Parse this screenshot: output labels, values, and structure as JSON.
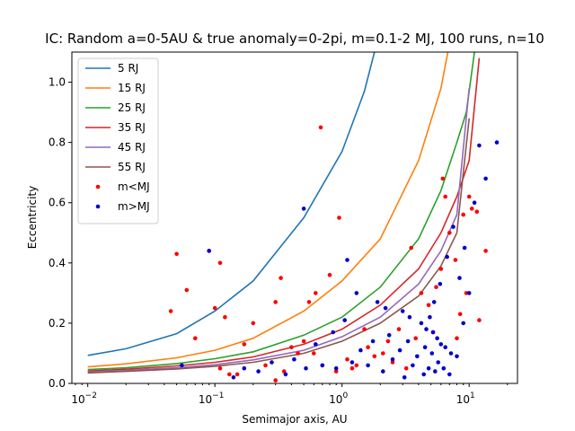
{
  "chart_data": {
    "type": "scatter",
    "title": "IC: Random a=0-5AU & true anomaly=0-2pi, m=0.1-2 MJ, 100 runs, n=10",
    "xlabel": "Semimajor axis, AU",
    "ylabel": "Eccentricity",
    "xscale": "log",
    "xlim": [
      0.0075,
      24
    ],
    "ylim": [
      0.0,
      1.1
    ],
    "xticks": [
      {
        "value": 0.01,
        "base": "10",
        "exp": "−2"
      },
      {
        "value": 0.1,
        "base": "10",
        "exp": "−1"
      },
      {
        "value": 1,
        "base": "10",
        "exp": "0"
      },
      {
        "value": 10,
        "base": "10",
        "exp": "1"
      }
    ],
    "yticks": [
      "0.0",
      "0.2",
      "0.4",
      "0.6",
      "0.8",
      "1.0"
    ],
    "legend_position": "upper left",
    "curves": [
      {
        "name": "5 RJ",
        "color": "#1f77b4",
        "points": [
          [
            0.01,
            0.093
          ],
          [
            0.02,
            0.115
          ],
          [
            0.05,
            0.165
          ],
          [
            0.1,
            0.24
          ],
          [
            0.2,
            0.34
          ],
          [
            0.5,
            0.55
          ],
          [
            1,
            0.77
          ],
          [
            1.5,
            0.97
          ],
          [
            1.8,
            1.1
          ]
        ]
      },
      {
        "name": "15 RJ",
        "color": "#ff7f0e",
        "points": [
          [
            0.01,
            0.055
          ],
          [
            0.02,
            0.065
          ],
          [
            0.05,
            0.085
          ],
          [
            0.1,
            0.11
          ],
          [
            0.2,
            0.15
          ],
          [
            0.5,
            0.24
          ],
          [
            1,
            0.34
          ],
          [
            2,
            0.48
          ],
          [
            4,
            0.74
          ],
          [
            6,
            0.98
          ],
          [
            6.8,
            1.1
          ]
        ]
      },
      {
        "name": "25 RJ",
        "color": "#2ca02c",
        "points": [
          [
            0.01,
            0.046
          ],
          [
            0.02,
            0.052
          ],
          [
            0.05,
            0.066
          ],
          [
            0.1,
            0.082
          ],
          [
            0.2,
            0.105
          ],
          [
            0.5,
            0.16
          ],
          [
            1,
            0.22
          ],
          [
            2,
            0.32
          ],
          [
            4,
            0.48
          ],
          [
            6,
            0.64
          ],
          [
            8,
            0.8
          ],
          [
            9.5,
            0.9
          ],
          [
            11,
            1.1
          ]
        ]
      },
      {
        "name": "35 RJ",
        "color": "#d62728",
        "points": [
          [
            0.01,
            0.041
          ],
          [
            0.02,
            0.047
          ],
          [
            0.05,
            0.058
          ],
          [
            0.1,
            0.07
          ],
          [
            0.2,
            0.088
          ],
          [
            0.5,
            0.13
          ],
          [
            1,
            0.18
          ],
          [
            2,
            0.26
          ],
          [
            4,
            0.38
          ],
          [
            6,
            0.5
          ],
          [
            8,
            0.62
          ],
          [
            10,
            0.74
          ],
          [
            12,
            1.08
          ]
        ]
      },
      {
        "name": "45 RJ",
        "color": "#9467bd",
        "points": [
          [
            0.01,
            0.038
          ],
          [
            0.02,
            0.043
          ],
          [
            0.05,
            0.052
          ],
          [
            0.1,
            0.062
          ],
          [
            0.2,
            0.078
          ],
          [
            0.5,
            0.11
          ],
          [
            1,
            0.155
          ],
          [
            2,
            0.22
          ],
          [
            4,
            0.33
          ],
          [
            6,
            0.44
          ],
          [
            8,
            0.56
          ],
          [
            10,
            0.98
          ]
        ]
      },
      {
        "name": "55 RJ",
        "color": "#8c564b",
        "points": [
          [
            0.01,
            0.035
          ],
          [
            0.02,
            0.04
          ],
          [
            0.05,
            0.048
          ],
          [
            0.1,
            0.057
          ],
          [
            0.2,
            0.07
          ],
          [
            0.5,
            0.1
          ],
          [
            1,
            0.14
          ],
          [
            2,
            0.2
          ],
          [
            4,
            0.29
          ],
          [
            6,
            0.39
          ],
          [
            8,
            0.5
          ],
          [
            10,
            0.88
          ]
        ]
      }
    ],
    "scatter_series": [
      {
        "name": "m<MJ",
        "color": "#ff0000",
        "points": [
          [
            0.05,
            0.43
          ],
          [
            0.06,
            0.31
          ],
          [
            0.045,
            0.24
          ],
          [
            0.07,
            0.15
          ],
          [
            0.11,
            0.4
          ],
          [
            0.1,
            0.25
          ],
          [
            0.12,
            0.22
          ],
          [
            0.09,
            0.44
          ],
          [
            0.2,
            0.2
          ],
          [
            0.17,
            0.13
          ],
          [
            0.11,
            0.05
          ],
          [
            0.13,
            0.03
          ],
          [
            0.3,
            0.27
          ],
          [
            0.33,
            0.35
          ],
          [
            0.4,
            0.12
          ],
          [
            0.45,
            0.1
          ],
          [
            0.5,
            0.14
          ],
          [
            0.55,
            0.27
          ],
          [
            0.62,
            0.3
          ],
          [
            0.68,
            0.85
          ],
          [
            0.8,
            0.36
          ],
          [
            0.95,
            0.55
          ],
          [
            1.1,
            0.08
          ],
          [
            1.3,
            0.06
          ],
          [
            1.6,
            0.12
          ],
          [
            2.1,
            0.1
          ],
          [
            2.5,
            0.07
          ],
          [
            3.2,
            0.05
          ],
          [
            3.5,
            0.45
          ],
          [
            4.2,
            0.3
          ],
          [
            5.2,
            0.17
          ],
          [
            6,
            0.38
          ],
          [
            6.5,
            0.62
          ],
          [
            7,
            0.5
          ],
          [
            7.8,
            0.41
          ],
          [
            8.5,
            0.23
          ],
          [
            9,
            0.56
          ],
          [
            10,
            0.62
          ],
          [
            10.5,
            0.58
          ],
          [
            11.5,
            0.57
          ],
          [
            12,
            0.21
          ],
          [
            13.5,
            0.44
          ],
          [
            5.5,
            0.32
          ],
          [
            4.8,
            0.26
          ],
          [
            3.8,
            0.15
          ],
          [
            2.8,
            0.18
          ],
          [
            2.3,
            0.14
          ],
          [
            1.8,
            0.09
          ],
          [
            1.5,
            0.18
          ],
          [
            1.2,
            0.05
          ],
          [
            0.9,
            0.04
          ],
          [
            0.7,
            0.06
          ],
          [
            0.35,
            0.04
          ],
          [
            0.25,
            0.06
          ],
          [
            0.15,
            0.03
          ],
          [
            0.3,
            0.01
          ],
          [
            0.6,
            0.1
          ],
          [
            6.2,
            0.68
          ],
          [
            9.5,
            0.3
          ],
          [
            8,
            0.15
          ]
        ]
      },
      {
        "name": "m>MJ",
        "color": "#0000cc",
        "points": [
          [
            0.09,
            0.44
          ],
          [
            0.055,
            0.06
          ],
          [
            0.5,
            0.58
          ],
          [
            1.1,
            0.41
          ],
          [
            1.3,
            0.3
          ],
          [
            1.9,
            0.27
          ],
          [
            2.2,
            0.25
          ],
          [
            3,
            0.24
          ],
          [
            3.4,
            0.22
          ],
          [
            4.2,
            0.2
          ],
          [
            4.6,
            0.18
          ],
          [
            5.2,
            0.17
          ],
          [
            5.6,
            0.15
          ],
          [
            6,
            0.13
          ],
          [
            6.5,
            0.12
          ],
          [
            7.2,
            0.1
          ],
          [
            8,
            0.09
          ],
          [
            9,
            0.2
          ],
          [
            10,
            0.3
          ],
          [
            11,
            0.6
          ],
          [
            12,
            0.79
          ],
          [
            13.5,
            0.68
          ],
          [
            16.5,
            0.8
          ],
          [
            2.5,
            0.08
          ],
          [
            3.6,
            0.06
          ],
          [
            4.8,
            0.05
          ],
          [
            5.4,
            0.04
          ],
          [
            4.4,
            0.03
          ],
          [
            3.1,
            0.02
          ],
          [
            2.1,
            0.04
          ],
          [
            1.6,
            0.06
          ],
          [
            1.2,
            0.07
          ],
          [
            0.9,
            0.05
          ],
          [
            0.7,
            0.06
          ],
          [
            0.52,
            0.05
          ],
          [
            0.42,
            0.08
          ],
          [
            0.36,
            0.03
          ],
          [
            0.28,
            0.07
          ],
          [
            0.22,
            0.04
          ],
          [
            0.17,
            0.05
          ],
          [
            0.14,
            0.02
          ],
          [
            0.62,
            0.13
          ],
          [
            0.85,
            0.17
          ],
          [
            1.05,
            0.21
          ],
          [
            1.4,
            0.11
          ],
          [
            1.75,
            0.14
          ],
          [
            2.35,
            0.16
          ],
          [
            2.85,
            0.11
          ],
          [
            3.3,
            0.14
          ],
          [
            3.9,
            0.09
          ],
          [
            4.5,
            0.12
          ],
          [
            5.1,
            0.1
          ],
          [
            5.7,
            0.07
          ],
          [
            6.3,
            0.05
          ],
          [
            7,
            0.03
          ],
          [
            4.9,
            0.22
          ],
          [
            5.3,
            0.27
          ],
          [
            5.9,
            0.33
          ],
          [
            6.7,
            0.42
          ],
          [
            7.5,
            0.52
          ],
          [
            8.4,
            0.35
          ],
          [
            9.2,
            0.45
          ]
        ]
      }
    ]
  }
}
